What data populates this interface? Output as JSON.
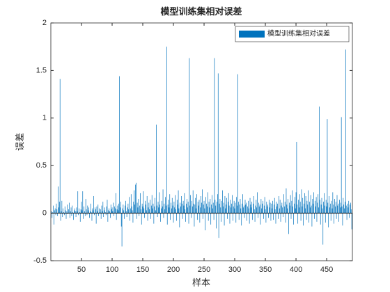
{
  "chart_data": {
    "type": "bar",
    "title": "模型训练集相对误差",
    "xlabel": "样本",
    "ylabel": "误差",
    "legend": {
      "labels": [
        "模型训练集相对误差"
      ],
      "location": "northeast"
    },
    "color": "#0072BD",
    "xlim": [
      0,
      492
    ],
    "xticks": [
      50,
      100,
      150,
      200,
      250,
      300,
      350,
      400,
      450
    ],
    "ylim": [
      -0.5,
      2
    ],
    "yticks": [
      -0.5,
      0,
      0.5,
      1,
      1.5,
      2
    ],
    "values": [
      0.02,
      -0.05,
      0.01,
      0.08,
      -0.12,
      0.03,
      0.05,
      -0.02,
      0.1,
      0.04,
      -0.03,
      0.28,
      0.06,
      0.12,
      1.41,
      -0.08,
      0.02,
      0.13,
      -0.04,
      0.05,
      0.01,
      -0.02,
      0.07,
      0.03,
      -0.06,
      0.02,
      0.09,
      -0.01,
      0.04,
      0.11,
      -0.05,
      0.02,
      0.06,
      -0.03,
      0.08,
      0.01,
      -0.07,
      0.03,
      0.05,
      0.02,
      -0.04,
      0.06,
      0.02,
      0.23,
      -0.02,
      0.05,
      0.01,
      -0.09,
      0.04,
      0.12,
      0.03,
      0.23,
      -0.06,
      0.07,
      0.02,
      -0.03,
      0.15,
      0.04,
      -0.02,
      0.08,
      0.03,
      0.06,
      -0.05,
      0.02,
      0.1,
      0.01,
      -0.08,
      0.05,
      0.03,
      0.18,
      -0.02,
      0.06,
      0.04,
      -0.11,
      0.07,
      0.02,
      0.09,
      -0.03,
      0.05,
      0.01,
      0.04,
      -0.06,
      0.08,
      0.02,
      0.12,
      -0.04,
      0.03,
      0.06,
      0.01,
      -0.02,
      0.07,
      0.14,
      -0.09,
      0.03,
      0.05,
      0.02,
      -0.05,
      0.09,
      0.04,
      0.06,
      0.02,
      0.11,
      -0.03,
      0.07,
      0.05,
      0.21,
      -0.07,
      0.04,
      0.08,
      0.03,
      0.1,
      1.44,
      0.06,
      0.12,
      -0.14,
      -0.35,
      0.05,
      0.09,
      0.03,
      -0.06,
      0.08,
      0.13,
      0.02,
      -0.04,
      0.06,
      0.1,
      0.04,
      0.17,
      -0.08,
      0.05,
      0.2,
      0.07,
      0.03,
      -0.1,
      0.12,
      0.24,
      0.09,
      0.3,
      0.32,
      -0.06,
      0.11,
      0.06,
      0.15,
      -0.03,
      0.08,
      0.21,
      0.04,
      -0.12,
      0.1,
      0.07,
      0.23,
      0.05,
      -0.05,
      0.13,
      0.09,
      0.03,
      0.18,
      -0.08,
      0.06,
      0.11,
      0.04,
      0.14,
      -0.06,
      0.08,
      0.19,
      0.05,
      0.1,
      -0.11,
      0.07,
      0.16,
      0.03,
      0.93,
      0.08,
      -0.04,
      0.12,
      0.06,
      0.22,
      0.09,
      -0.09,
      0.05,
      0.13,
      0.07,
      0.25,
      -0.05,
      0.1,
      0.04,
      0.17,
      0.08,
      1.75,
      -0.12,
      0.09,
      0.14,
      0.06,
      0.2,
      -0.07,
      0.11,
      0.05,
      0.16,
      0.08,
      -0.1,
      0.12,
      0.06,
      0.19,
      0.04,
      -0.08,
      0.14,
      0.09,
      0.24,
      0.05,
      -0.15,
      0.11,
      0.07,
      0.18,
      0.1,
      -0.06,
      0.13,
      0.08,
      0.21,
      0.04,
      -0.09,
      0.1,
      0.15,
      0.06,
      0.12,
      -0.11,
      1.63,
      0.08,
      0.19,
      -0.05,
      0.13,
      0.07,
      0.24,
      0.1,
      -0.14,
      0.09,
      0.16,
      0.05,
      0.2,
      -0.07,
      0.12,
      0.08,
      0.14,
      -0.1,
      0.06,
      0.18,
      0.11,
      0.25,
      -0.06,
      0.09,
      0.13,
      0.05,
      -0.18,
      0.17,
      0.1,
      0.07,
      0.22,
      -0.08,
      0.12,
      0.06,
      0.15,
      -0.12,
      0.09,
      0.19,
      0.05,
      0.11,
      -0.07,
      1.63,
      0.14,
      0.08,
      -0.16,
      0.12,
      0.2,
      1.47,
      -0.26,
      0.1,
      0.15,
      0.06,
      -0.09,
      0.13,
      0.24,
      0.07,
      0.11,
      -0.13,
      0.18,
      0.05,
      0.09,
      0.16,
      -0.06,
      0.12,
      0.21,
      0.08,
      -0.11,
      0.14,
      0.06,
      0.1,
      0.19,
      -0.08,
      0.07,
      0.13,
      0.05,
      0.11,
      -0.1,
      0.17,
      0.08,
      1.46,
      0.12,
      -0.07,
      0.09,
      0.15,
      0.05,
      -0.13,
      0.1,
      0.2,
      0.06,
      0.08,
      -0.05,
      0.14,
      0.09,
      0.11,
      -0.08,
      0.07,
      0.13,
      0.05,
      -0.11,
      0.16,
      0.09,
      0.06,
      0.12,
      -0.07,
      0.1,
      0.18,
      0.04,
      -0.09,
      0.08,
      0.14,
      0.06,
      0.22,
      -0.05,
      0.11,
      0.07,
      0.09,
      -0.12,
      0.15,
      0.05,
      0.1,
      0.13,
      -0.06,
      0.08,
      0.17,
      0.04,
      -0.1,
      0.12,
      0.07,
      0.09,
      -0.05,
      0.14,
      0.06,
      0.11,
      -0.08,
      0.1,
      0.05,
      0.13,
      -0.07,
      0.09,
      0.16,
      0.04,
      -0.11,
      0.12,
      0.07,
      0.1,
      -0.06,
      0.18,
      0.05,
      0.14,
      -0.09,
      0.08,
      0.11,
      0.06,
      -0.04,
      0.2,
      0.07,
      0.12,
      -0.1,
      0.26,
      0.09,
      0.05,
      0.15,
      -0.22,
      0.11,
      0.08,
      0.19,
      -0.06,
      0.13,
      0.24,
      0.07,
      -0.12,
      0.1,
      0.17,
      0.05,
      0.22,
      0.75,
      0.09,
      -0.11,
      0.14,
      0.06,
      0.2,
      0.12,
      -0.08,
      0.25,
      0.07,
      0.16,
      -0.13,
      0.1,
      0.21,
      0.05,
      0.18,
      -0.07,
      0.13,
      0.09,
      0.24,
      -0.1,
      0.12,
      0.06,
      0.19,
      0.08,
      -0.14,
      0.15,
      0.1,
      0.22,
      -0.06,
      0.13,
      0.07,
      0.17,
      -0.09,
      0.11,
      0.2,
      0.06,
      1.12,
      0.14,
      -0.12,
      0.09,
      0.16,
      0.05,
      -0.33,
      0.12,
      0.21,
      0.08,
      -0.1,
      0.14,
      0.07,
      0.99,
      0.11,
      -0.15,
      0.18,
      0.06,
      0.1,
      -0.08,
      0.13,
      0.05,
      0.22,
      0.09,
      -0.11,
      0.15,
      0.07,
      0.12,
      -0.06,
      0.19,
      0.08,
      0.1,
      -0.09,
      0.14,
      0.06,
      0.11,
      1.01,
      0.07,
      -0.13,
      0.16,
      0.09,
      0.05,
      0.12,
      1.72,
      0.08,
      -0.07,
      0.1,
      0.06,
      0.13,
      -0.05,
      0.09,
      0.11,
      0.04,
      -0.17
    ]
  }
}
